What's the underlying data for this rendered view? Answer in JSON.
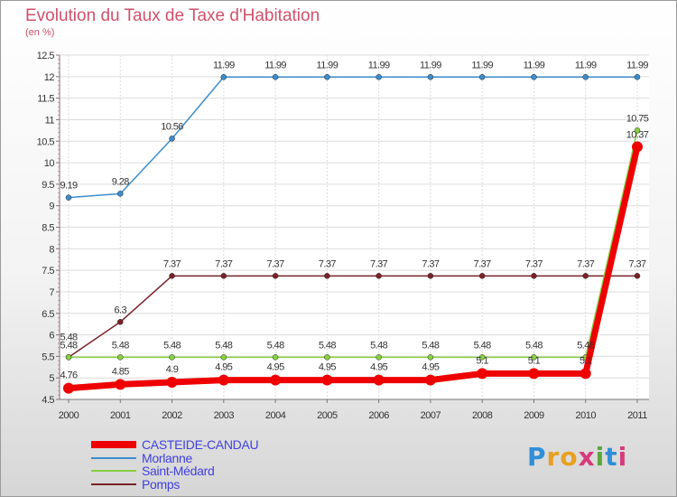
{
  "header": {
    "title": "Evolution du Taux de Taxe d'Habitation",
    "unit": "(en %)"
  },
  "logo": {
    "text": "Proxiti",
    "letter_colors": [
      "#2f8fd8",
      "#e8a020",
      "#e8a020",
      "#d83a7a",
      "#5aa83a",
      "#2f8fd8",
      "#d83a7a"
    ]
  },
  "chart_data": {
    "type": "line",
    "title": "Evolution du Taux de Taxe d'Habitation",
    "ylabel": "(en %)",
    "xlabel": "",
    "x": [
      "2000",
      "2001",
      "2002",
      "2003",
      "2004",
      "2005",
      "2006",
      "2007",
      "2008",
      "2009",
      "2010",
      "2011"
    ],
    "ylim": [
      4.5,
      12.5
    ],
    "yticks": [
      "4.5",
      "5",
      "5.5",
      "6",
      "6.5",
      "7",
      "7.5",
      "8",
      "8.5",
      "9",
      "9.5",
      "10",
      "10.5",
      "11",
      "11.5",
      "12",
      "12.5"
    ],
    "grid": true,
    "legend_position": "bottom-left",
    "series": [
      {
        "name": "CASTEIDE-CANDAU",
        "color": "#ee0000",
        "values": [
          4.76,
          4.85,
          4.9,
          4.95,
          4.95,
          4.95,
          4.95,
          4.95,
          5.1,
          5.1,
          5.1,
          10.37
        ],
        "labels": [
          "4.76",
          "4.85",
          "4.9",
          "4.95",
          "4.95",
          "4.95",
          "4.95",
          "4.95",
          "5.1",
          "5.1",
          "5.1",
          "10.37"
        ]
      },
      {
        "name": "Morlanne",
        "color": "#3c8dcc",
        "values": [
          9.19,
          9.28,
          10.56,
          11.99,
          11.99,
          11.99,
          11.99,
          11.99,
          11.99,
          11.99,
          11.99,
          11.99
        ],
        "labels": [
          "9.19",
          "9.28",
          "10.56",
          "11.99",
          "11.99",
          "11.99",
          "11.99",
          "11.99",
          "11.99",
          "11.99",
          "11.99",
          "11.99"
        ]
      },
      {
        "name": "Saint-Médard",
        "color": "#88d040",
        "values": [
          5.48,
          5.48,
          5.48,
          5.48,
          5.48,
          5.48,
          5.48,
          5.48,
          5.48,
          5.48,
          5.48,
          10.75
        ],
        "labels": [
          "5.48",
          "5.48",
          "5.48",
          "5.48",
          "5.48",
          "5.48",
          "5.48",
          "5.48",
          "5.48",
          "5.48",
          "5.48",
          "10.75"
        ]
      },
      {
        "name": "Pomps",
        "color": "#7a2228",
        "values": [
          5.48,
          6.3,
          7.37,
          7.37,
          7.37,
          7.37,
          7.37,
          7.37,
          7.37,
          7.37,
          7.37,
          7.37
        ],
        "labels": [
          "5.48",
          "6.3",
          "7.37",
          "7.37",
          "7.37",
          "7.37",
          "7.37",
          "7.37",
          "7.37",
          "7.37",
          "7.37",
          "7.37"
        ]
      }
    ]
  }
}
